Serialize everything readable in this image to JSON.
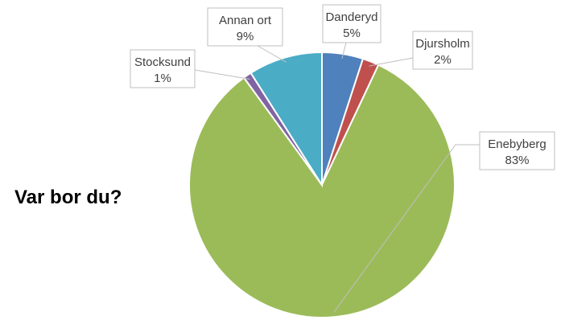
{
  "chart_data": {
    "type": "pie",
    "title": "Var bor du?",
    "slices": [
      {
        "label": "Danderyd",
        "value": 5,
        "display": "5%",
        "color": "#4f81bd"
      },
      {
        "label": "Djursholm",
        "value": 2,
        "display": "2%",
        "color": "#c0504d"
      },
      {
        "label": "Enebyberg",
        "value": 83,
        "display": "83%",
        "color": "#9bbb59"
      },
      {
        "label": "Stocksund",
        "value": 1,
        "display": "1%",
        "color": "#8064a2"
      },
      {
        "label": "Annan ort",
        "value": 9,
        "display": "9%",
        "color": "#4bacc6"
      }
    ],
    "start_angle_deg": 0,
    "direction": "clockwise",
    "legend": "none",
    "data_labels": "callouts"
  }
}
